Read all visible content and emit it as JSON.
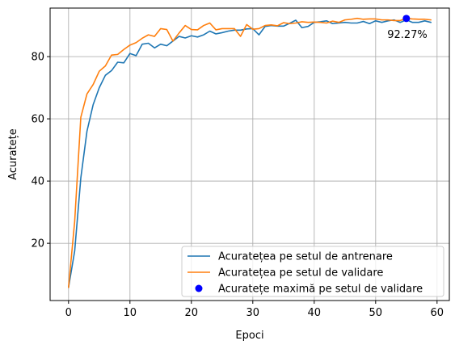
{
  "chart_data": {
    "type": "line",
    "title": "",
    "xlabel": "Epoci",
    "ylabel": "Acuratețe",
    "xlim": [
      -3,
      62
    ],
    "ylim": [
      1.6,
      95.6
    ],
    "xticks": [
      0,
      10,
      20,
      30,
      40,
      50,
      60
    ],
    "yticks": [
      20,
      40,
      60,
      80
    ],
    "grid": true,
    "legend_position": "lower-right",
    "x": [
      0,
      1,
      2,
      3,
      4,
      5,
      6,
      7,
      8,
      9,
      10,
      11,
      12,
      13,
      14,
      15,
      16,
      17,
      18,
      19,
      20,
      21,
      22,
      23,
      24,
      25,
      26,
      27,
      28,
      29,
      30,
      31,
      32,
      33,
      34,
      35,
      36,
      37,
      38,
      39,
      40,
      41,
      42,
      43,
      44,
      45,
      46,
      47,
      48,
      49,
      50,
      51,
      52,
      53,
      54,
      55,
      56,
      57,
      58,
      59
    ],
    "series": [
      {
        "name": "Acuratețea pe setul de antrenare",
        "color": "#1f77b4",
        "values": [
          5.8,
          17.5,
          41.0,
          56.0,
          64.5,
          70.0,
          74.0,
          75.5,
          78.2,
          78.0,
          81.0,
          80.3,
          84.0,
          84.3,
          82.8,
          84.0,
          83.5,
          85.0,
          86.5,
          86.0,
          86.7,
          86.3,
          87.0,
          88.2,
          87.3,
          87.7,
          88.2,
          88.5,
          88.5,
          88.9,
          89.0,
          87.0,
          89.7,
          90.0,
          89.8,
          89.8,
          90.7,
          91.7,
          89.3,
          89.7,
          91.0,
          91.2,
          91.5,
          90.6,
          90.8,
          91.0,
          90.8,
          90.8,
          91.3,
          90.6,
          91.5,
          91.0,
          91.5,
          91.8,
          91.0,
          91.8,
          91.0,
          91.0,
          91.5,
          91.0
        ]
      },
      {
        "name": "Acuratețea pe setul de validare",
        "color": "#ff7f0e",
        "values": [
          5.8,
          27.0,
          60.5,
          68.0,
          71.0,
          75.3,
          77.0,
          80.5,
          80.7,
          82.3,
          83.7,
          84.5,
          85.9,
          87.0,
          86.5,
          89.0,
          88.7,
          85.0,
          87.6,
          90.0,
          88.7,
          88.6,
          90.0,
          90.8,
          88.6,
          89.0,
          89.0,
          89.0,
          86.5,
          90.3,
          88.8,
          89.0,
          90.0,
          90.2,
          89.9,
          90.9,
          90.6,
          90.8,
          91.2,
          91.0,
          91.1,
          91.0,
          90.8,
          91.4,
          91.0,
          91.8,
          92.0,
          92.3,
          92.0,
          92.1,
          92.1,
          91.8,
          91.8,
          91.6,
          91.6,
          92.27,
          92.1,
          92.0,
          92.0,
          91.8
        ]
      }
    ],
    "max_point": {
      "name": "Acuratețe maximă pe setul de validare",
      "color": "#0000ff",
      "x": 55,
      "y": 92.27,
      "label": "92.27%"
    }
  }
}
